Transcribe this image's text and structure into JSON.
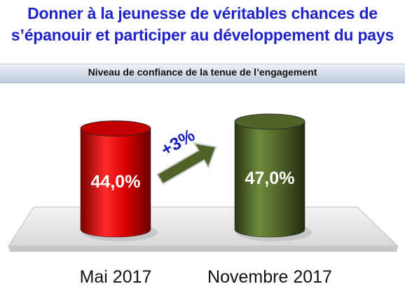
{
  "header": {
    "title_line1": "Donner à la jeunesse de véritables chances de",
    "title_line2": "s’épanouir et participer au développement du pays",
    "subtitle": "Niveau de confiance de la tenue de l’engagement"
  },
  "colors": {
    "title": "#1f23c8",
    "bar_may": "#c00000",
    "bar_nov": "#4f6228",
    "arrow": "#4f6228",
    "delta_text": "#1a1fb8"
  },
  "chart_data": {
    "type": "bar",
    "title": "Niveau de confiance de la tenue de l’engagement",
    "categories": [
      "Mai 2017",
      "Novembre 2017"
    ],
    "values": [
      44.0,
      47.0
    ],
    "value_labels": [
      "44,0%",
      "47,0%"
    ],
    "annotations": [
      {
        "text": "+3%",
        "shape": "arrow",
        "from": "Mai 2017",
        "to": "Novembre 2017"
      }
    ],
    "xlabel": "",
    "ylabel": "",
    "grid": false,
    "legend": "none",
    "style": "3d-cylinder"
  }
}
